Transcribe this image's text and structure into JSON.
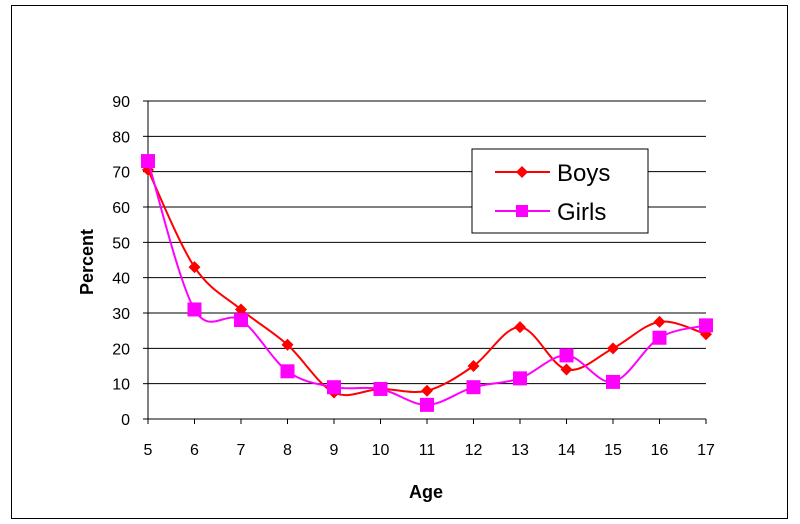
{
  "chart_data": {
    "type": "line",
    "xlabel": "Age",
    "ylabel": "Percent",
    "x": [
      5,
      6,
      7,
      8,
      9,
      10,
      11,
      12,
      13,
      14,
      15,
      16,
      17
    ],
    "xlim": [
      5,
      17
    ],
    "ylim": [
      0,
      90
    ],
    "yticks": [
      0,
      10,
      20,
      30,
      40,
      50,
      60,
      70,
      80,
      90
    ],
    "grid": "horizontal",
    "legend_position": "top-right",
    "series": [
      {
        "name": "Boys",
        "color": "#ff0000",
        "marker": "diamond",
        "values": [
          70.5,
          43,
          31,
          21,
          7.5,
          8.5,
          8,
          15,
          26,
          14,
          20,
          27.5,
          24
        ]
      },
      {
        "name": "Girls",
        "color": "#ff00ff",
        "marker": "square",
        "values": [
          73,
          31,
          28,
          13.5,
          9,
          8.5,
          4,
          9,
          11.5,
          18,
          10.5,
          23,
          26.5
        ]
      }
    ]
  }
}
